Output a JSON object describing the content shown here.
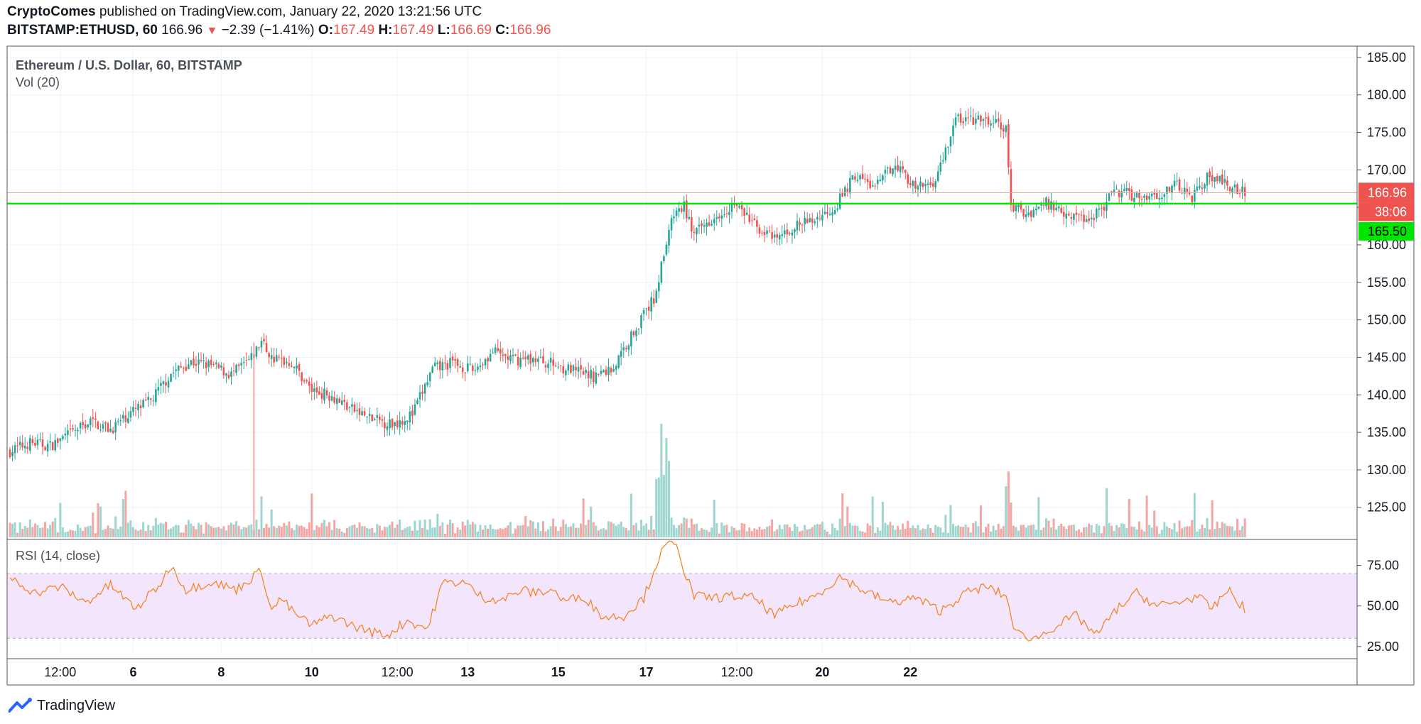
{
  "header": {
    "author": "CryptoComes",
    "published_text": "published on TradingView.com, January 22, 2020 13:21:56 UTC",
    "symbol": "BITSTAMP:ETHUSD, 60",
    "last": "166.96",
    "change": "−2.39 (−1.41%)",
    "o_label": "O:",
    "o_value": "167.49",
    "h_label": "H:",
    "h_value": "167.49",
    "l_label": "L:",
    "l_value": "166.69",
    "c_label": "C:",
    "c_value": "166.96"
  },
  "footer": {
    "brand": "TradingView"
  },
  "colors": {
    "up": "#26a69a",
    "down": "#ef5350",
    "support": "#00e600",
    "rsi": "#f57f17",
    "rsi_band": "#f3e5fc"
  },
  "chart_data": [
    {
      "type": "candlestick",
      "title": "Ethereum / U.S. Dollar, 60, BITSTAMP",
      "y_ticks": [
        "185.00",
        "180.00",
        "175.00",
        "170.00",
        "165.00",
        "160.00",
        "155.00",
        "150.00",
        "145.00",
        "140.00",
        "135.00",
        "130.00",
        "125.00"
      ],
      "ylim": [
        121,
        186.5
      ],
      "x_ticks": [
        "12:00",
        "6",
        "8",
        "10",
        "12:00",
        "13",
        "15",
        "17",
        "12:00",
        "20",
        "22"
      ],
      "last_price_label": "166.96",
      "countdown_label": "38:06",
      "support_label": "165.50",
      "support_level": 165.5,
      "close_anchors": [
        [
          0,
          132.5
        ],
        [
          8,
          133.6
        ],
        [
          16,
          133.2
        ],
        [
          24,
          134.8
        ],
        [
          32,
          136.5
        ],
        [
          40,
          135.4
        ],
        [
          48,
          137.6
        ],
        [
          56,
          139.2
        ],
        [
          64,
          142.8
        ],
        [
          72,
          144.4
        ],
        [
          80,
          143.9
        ],
        [
          88,
          142.7
        ],
        [
          96,
          144.8
        ],
        [
          100,
          147.2
        ],
        [
          104,
          144.9
        ],
        [
          112,
          144.3
        ],
        [
          120,
          140.6
        ],
        [
          128,
          139.9
        ],
        [
          136,
          138.1
        ],
        [
          144,
          136.7
        ],
        [
          152,
          136.1
        ],
        [
          160,
          137.4
        ],
        [
          168,
          143.4
        ],
        [
          176,
          144.3
        ],
        [
          184,
          143.2
        ],
        [
          192,
          145.7
        ],
        [
          200,
          144.7
        ],
        [
          208,
          144.8
        ],
        [
          216,
          144.1
        ],
        [
          224,
          143.2
        ],
        [
          232,
          142.5
        ],
        [
          240,
          143.6
        ],
        [
          248,
          148.5
        ],
        [
          256,
          152.8
        ],
        [
          261,
          160.2
        ],
        [
          264,
          164.1
        ],
        [
          268,
          165.1
        ],
        [
          272,
          161.3
        ],
        [
          280,
          163.9
        ],
        [
          288,
          165.5
        ],
        [
          296,
          162.7
        ],
        [
          304,
          160.6
        ],
        [
          312,
          162.4
        ],
        [
          320,
          163.4
        ],
        [
          328,
          165.1
        ],
        [
          336,
          169.3
        ],
        [
          344,
          167.6
        ],
        [
          352,
          171.1
        ],
        [
          360,
          167.4
        ],
        [
          368,
          168.6
        ],
        [
          376,
          176.8
        ],
        [
          384,
          176.6
        ],
        [
          392,
          176.2
        ],
        [
          396,
          175.3
        ],
        [
          398,
          165.2
        ],
        [
          404,
          164.1
        ],
        [
          412,
          165.6
        ],
        [
          420,
          164.3
        ],
        [
          428,
          163.4
        ],
        [
          432,
          164.3
        ],
        [
          440,
          167.2
        ],
        [
          448,
          166.5
        ],
        [
          456,
          166.7
        ],
        [
          464,
          167.9
        ],
        [
          470,
          166.4
        ],
        [
          476,
          169.1
        ],
        [
          484,
          168.1
        ],
        [
          491,
          166.96
        ]
      ],
      "volume_label": "Vol (20)"
    },
    {
      "type": "line",
      "title": "RSI (14, close)",
      "y_ticks": [
        "75.00",
        "50.00",
        "25.00"
      ],
      "ylim": [
        21,
        91
      ],
      "band": [
        30,
        70
      ],
      "anchors": [
        [
          0,
          68
        ],
        [
          10,
          58
        ],
        [
          20,
          62
        ],
        [
          30,
          52
        ],
        [
          40,
          63
        ],
        [
          50,
          48
        ],
        [
          60,
          64
        ],
        [
          64,
          75
        ],
        [
          70,
          60
        ],
        [
          80,
          65
        ],
        [
          90,
          60
        ],
        [
          100,
          72
        ],
        [
          104,
          47
        ],
        [
          108,
          55
        ],
        [
          112,
          47
        ],
        [
          120,
          38
        ],
        [
          128,
          44
        ],
        [
          136,
          38
        ],
        [
          144,
          34
        ],
        [
          150,
          32
        ],
        [
          158,
          41
        ],
        [
          166,
          36
        ],
        [
          172,
          64
        ],
        [
          180,
          65
        ],
        [
          188,
          55
        ],
        [
          196,
          54
        ],
        [
          204,
          60
        ],
        [
          208,
          58
        ],
        [
          216,
          60
        ],
        [
          220,
          53
        ],
        [
          228,
          56
        ],
        [
          236,
          43
        ],
        [
          244,
          44
        ],
        [
          252,
          55
        ],
        [
          258,
          80
        ],
        [
          262,
          89
        ],
        [
          266,
          85
        ],
        [
          268,
          72
        ],
        [
          272,
          56
        ],
        [
          280,
          55
        ],
        [
          288,
          56
        ],
        [
          296,
          55
        ],
        [
          304,
          44
        ],
        [
          312,
          51
        ],
        [
          320,
          56
        ],
        [
          330,
          68
        ],
        [
          340,
          59
        ],
        [
          350,
          52
        ],
        [
          360,
          55
        ],
        [
          370,
          47
        ],
        [
          380,
          58
        ],
        [
          388,
          62
        ],
        [
          396,
          56
        ],
        [
          400,
          33
        ],
        [
          408,
          30
        ],
        [
          416,
          38
        ],
        [
          424,
          44
        ],
        [
          432,
          32
        ],
        [
          440,
          48
        ],
        [
          448,
          58
        ],
        [
          456,
          50
        ],
        [
          464,
          52
        ],
        [
          472,
          56
        ],
        [
          478,
          48
        ],
        [
          484,
          60
        ],
        [
          490,
          50
        ],
        [
          491,
          45
        ]
      ]
    }
  ]
}
